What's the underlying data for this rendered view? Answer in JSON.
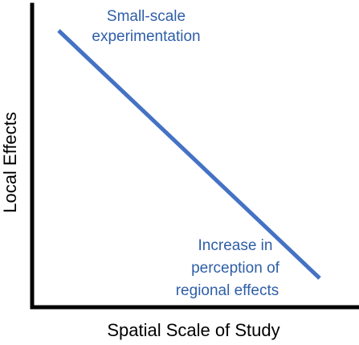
{
  "diagram": {
    "annotation_top": [
      "Small-scale",
      "experimentation"
    ],
    "annotation_bottom": [
      "Increase in",
      "perception of",
      "regional effects"
    ],
    "y_axis_label": "Local Effects",
    "x_axis_label": "Spatial Scale of Study"
  },
  "colors": {
    "trend_line": "#4472c4",
    "annotation_text": "#2e5ea8",
    "axis": "#000000"
  }
}
